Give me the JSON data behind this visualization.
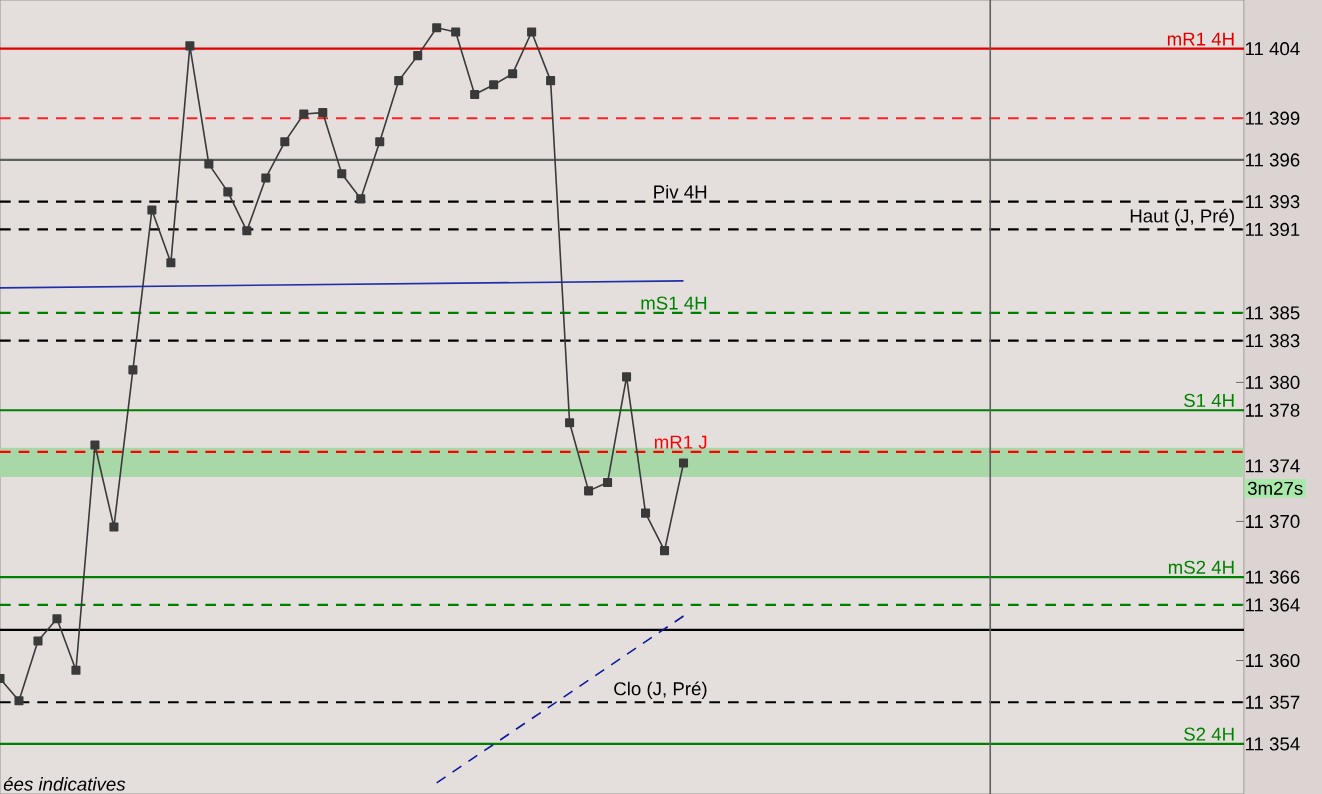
{
  "chart_data": {
    "type": "line",
    "categories": [
      null,
      null,
      null,
      null,
      null,
      null,
      null,
      null,
      null,
      null,
      null,
      null,
      null,
      null,
      null,
      null,
      null,
      null,
      null,
      null,
      null,
      null,
      null,
      null,
      null,
      null,
      null,
      null,
      null,
      null,
      null,
      null,
      null,
      null,
      null,
      null,
      null
    ],
    "series": [
      {
        "color": "#3a3a3a",
        "values": [
          11358.7,
          11357.1,
          11361.4,
          11363.0,
          11359.3,
          11375.5,
          11369.6,
          11380.9,
          11392.4,
          11388.6,
          11404.2,
          11395.7,
          11393.7,
          11390.9,
          11394.7,
          11397.3,
          11399.3,
          11399.4,
          11395.0,
          11393.2,
          11397.3,
          11401.7,
          11403.5,
          11405.5,
          11405.2,
          11400.7,
          11401.4,
          11402.2,
          11405.2,
          11401.7,
          11377.1,
          11372.2,
          11372.8,
          11380.4,
          11370.6,
          11367.9,
          11374.2
        ]
      },
      {
        "type": "line",
        "color": "#1f2fa8",
        "marker": "none",
        "values": [
          11386.8,
          null,
          null,
          null,
          null,
          null,
          null,
          null,
          null,
          null,
          null,
          null,
          null,
          null,
          null,
          null,
          null,
          null,
          null,
          null,
          null,
          null,
          null,
          null,
          null,
          null,
          null,
          null,
          null,
          null,
          null,
          null,
          null,
          null,
          null,
          null,
          11387.3
        ]
      },
      {
        "type": "line",
        "color": "#0a1a9a",
        "marker": "none",
        "line_style": "dashed",
        "values": [
          null,
          null,
          null,
          null,
          null,
          null,
          null,
          null,
          null,
          null,
          null,
          null,
          null,
          null,
          null,
          null,
          null,
          null,
          null,
          null,
          null,
          null,
          null,
          11351.2,
          null,
          null,
          null,
          null,
          null,
          null,
          null,
          null,
          null,
          null,
          null,
          null,
          11363.2
        ]
      }
    ],
    "ylim": [
      11350.4,
      11407.5
    ],
    "yticks": [
      {
        "value": 11404,
        "label": "11 404"
      },
      {
        "value": 11399,
        "label": "11 399"
      },
      {
        "value": 11396,
        "label": "11 396"
      },
      {
        "value": 11393,
        "label": "11 393"
      },
      {
        "value": 11391,
        "label": "11 391"
      },
      {
        "value": 11385,
        "label": "11 385"
      },
      {
        "value": 11383,
        "label": "11 383"
      },
      {
        "value": 11380,
        "label": "11 380"
      },
      {
        "value": 11378,
        "label": "11 378"
      },
      {
        "value": 11375,
        "label": null
      },
      {
        "value": 11374,
        "label": "11 374"
      },
      {
        "value": 11370,
        "label": "11 370"
      },
      {
        "value": 11366,
        "label": "11 366"
      },
      {
        "value": 11364,
        "label": "11 364"
      },
      {
        "value": 11360,
        "label": "11 360"
      },
      {
        "value": 11357,
        "label": "11 357"
      },
      {
        "value": 11354,
        "label": "11 354"
      }
    ],
    "tick_labels": "y",
    "marker": "square",
    "bands": [
      {
        "axis": "y",
        "from": 11373.2,
        "to": 11375.3,
        "color": "#a8d8a8"
      }
    ],
    "ref_lines": [
      {
        "axis": "y",
        "value": 11404,
        "label": "mR1 4H",
        "color": "#e00000",
        "line_style": "solid"
      },
      {
        "axis": "y",
        "value": 11399,
        "label": null,
        "color": "#ff2020",
        "line_style": "dashed"
      },
      {
        "axis": "y",
        "value": 11396,
        "label": null,
        "color": "#606060",
        "line_style": "solid"
      },
      {
        "axis": "y",
        "value": 11393,
        "label": "Piv 4H",
        "color": "#000000",
        "line_style": "dashed"
      },
      {
        "axis": "y",
        "value": 11391,
        "label": "Haut (J, Pré)",
        "color": "#000000",
        "line_style": "dashed"
      },
      {
        "axis": "y",
        "value": 11385,
        "label": "mS1 4H",
        "color": "#008000",
        "line_style": "dashed"
      },
      {
        "axis": "y",
        "value": 11383,
        "label": null,
        "color": "#000000",
        "line_style": "dashed"
      },
      {
        "axis": "y",
        "value": 11378,
        "label": "S1 4H",
        "color": "#008000",
        "line_style": "solid"
      },
      {
        "axis": "y",
        "value": 11375,
        "label": "mR1 J",
        "color": "#ff0000",
        "line_style": "dashed"
      },
      {
        "axis": "y",
        "value": 11366,
        "label": "mS2 4H",
        "color": "#008000",
        "line_style": "solid"
      },
      {
        "axis": "y",
        "value": 11364,
        "label": null,
        "color": "#008000",
        "line_style": "dashed"
      },
      {
        "axis": "y",
        "value": 11362.2,
        "label": null,
        "color": "#000000",
        "line_style": "solid"
      },
      {
        "axis": "y",
        "value": 11357,
        "label": "Clo (J, Pré)",
        "color": "#000000",
        "line_style": "dashed"
      },
      {
        "axis": "y",
        "value": 11354,
        "label": "S2 4H",
        "color": "#008000",
        "line_style": "solid"
      }
    ],
    "annotations": [
      "ées indicatives",
      "3m27s"
    ]
  }
}
